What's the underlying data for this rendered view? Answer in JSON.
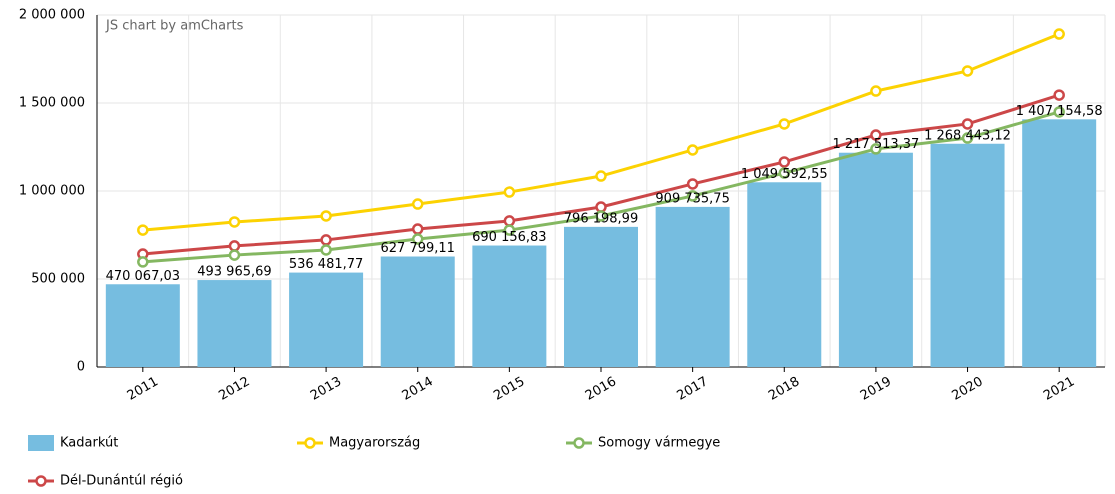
{
  "chart_data": {
    "type": "bar",
    "credit": "JS chart by amCharts",
    "categories": [
      "2011",
      "2012",
      "2013",
      "2014",
      "2015",
      "2016",
      "2017",
      "2018",
      "2019",
      "2020",
      "2021"
    ],
    "ylim": [
      0,
      2000000
    ],
    "yticks": [
      0,
      {
        "value": 500000,
        "label": "500 000"
      },
      {
        "value": 1000000,
        "label": "1 000 000"
      },
      {
        "value": 1500000,
        "label": "1 500 000"
      },
      {
        "value": 2000000,
        "label": "2 000 000"
      }
    ],
    "grid": true,
    "legend": "bottom",
    "series": [
      {
        "name": "Kadarkút",
        "type": "bar",
        "color": "#76bde0",
        "values": [
          470067.03,
          493965.69,
          536481.77,
          627799.11,
          690156.83,
          796198.99,
          909735.75,
          1049592.55,
          1217513.37,
          1268443.12,
          1407154.58
        ],
        "value_labels": [
          "470 067,03",
          "493 965,69",
          "536 481,77",
          "627 799,11",
          "690 156,83",
          "796 198,99",
          "909 735,75",
          "1 049 592,55",
          "1 217 513,37",
          "1 268 443,12",
          "1 407 154,58"
        ]
      },
      {
        "name": "Magyarország",
        "type": "line",
        "color": "#fcd202",
        "values": [
          778000,
          824000,
          858000,
          926000,
          994000,
          1085000,
          1233000,
          1381000,
          1568000,
          1682000,
          1892000
        ]
      },
      {
        "name": "Somogy vármegye",
        "type": "line",
        "color": "#84b761",
        "values": [
          597000,
          636000,
          665000,
          727000,
          778000,
          858000,
          972000,
          1102000,
          1239000,
          1301000,
          1449000
        ]
      },
      {
        "name": "Dél-Dunántúl régió",
        "type": "line",
        "color": "#cc4748",
        "values": [
          642000,
          688000,
          722000,
          784000,
          830000,
          909000,
          1040000,
          1165000,
          1318000,
          1381000,
          1545000
        ]
      }
    ]
  }
}
